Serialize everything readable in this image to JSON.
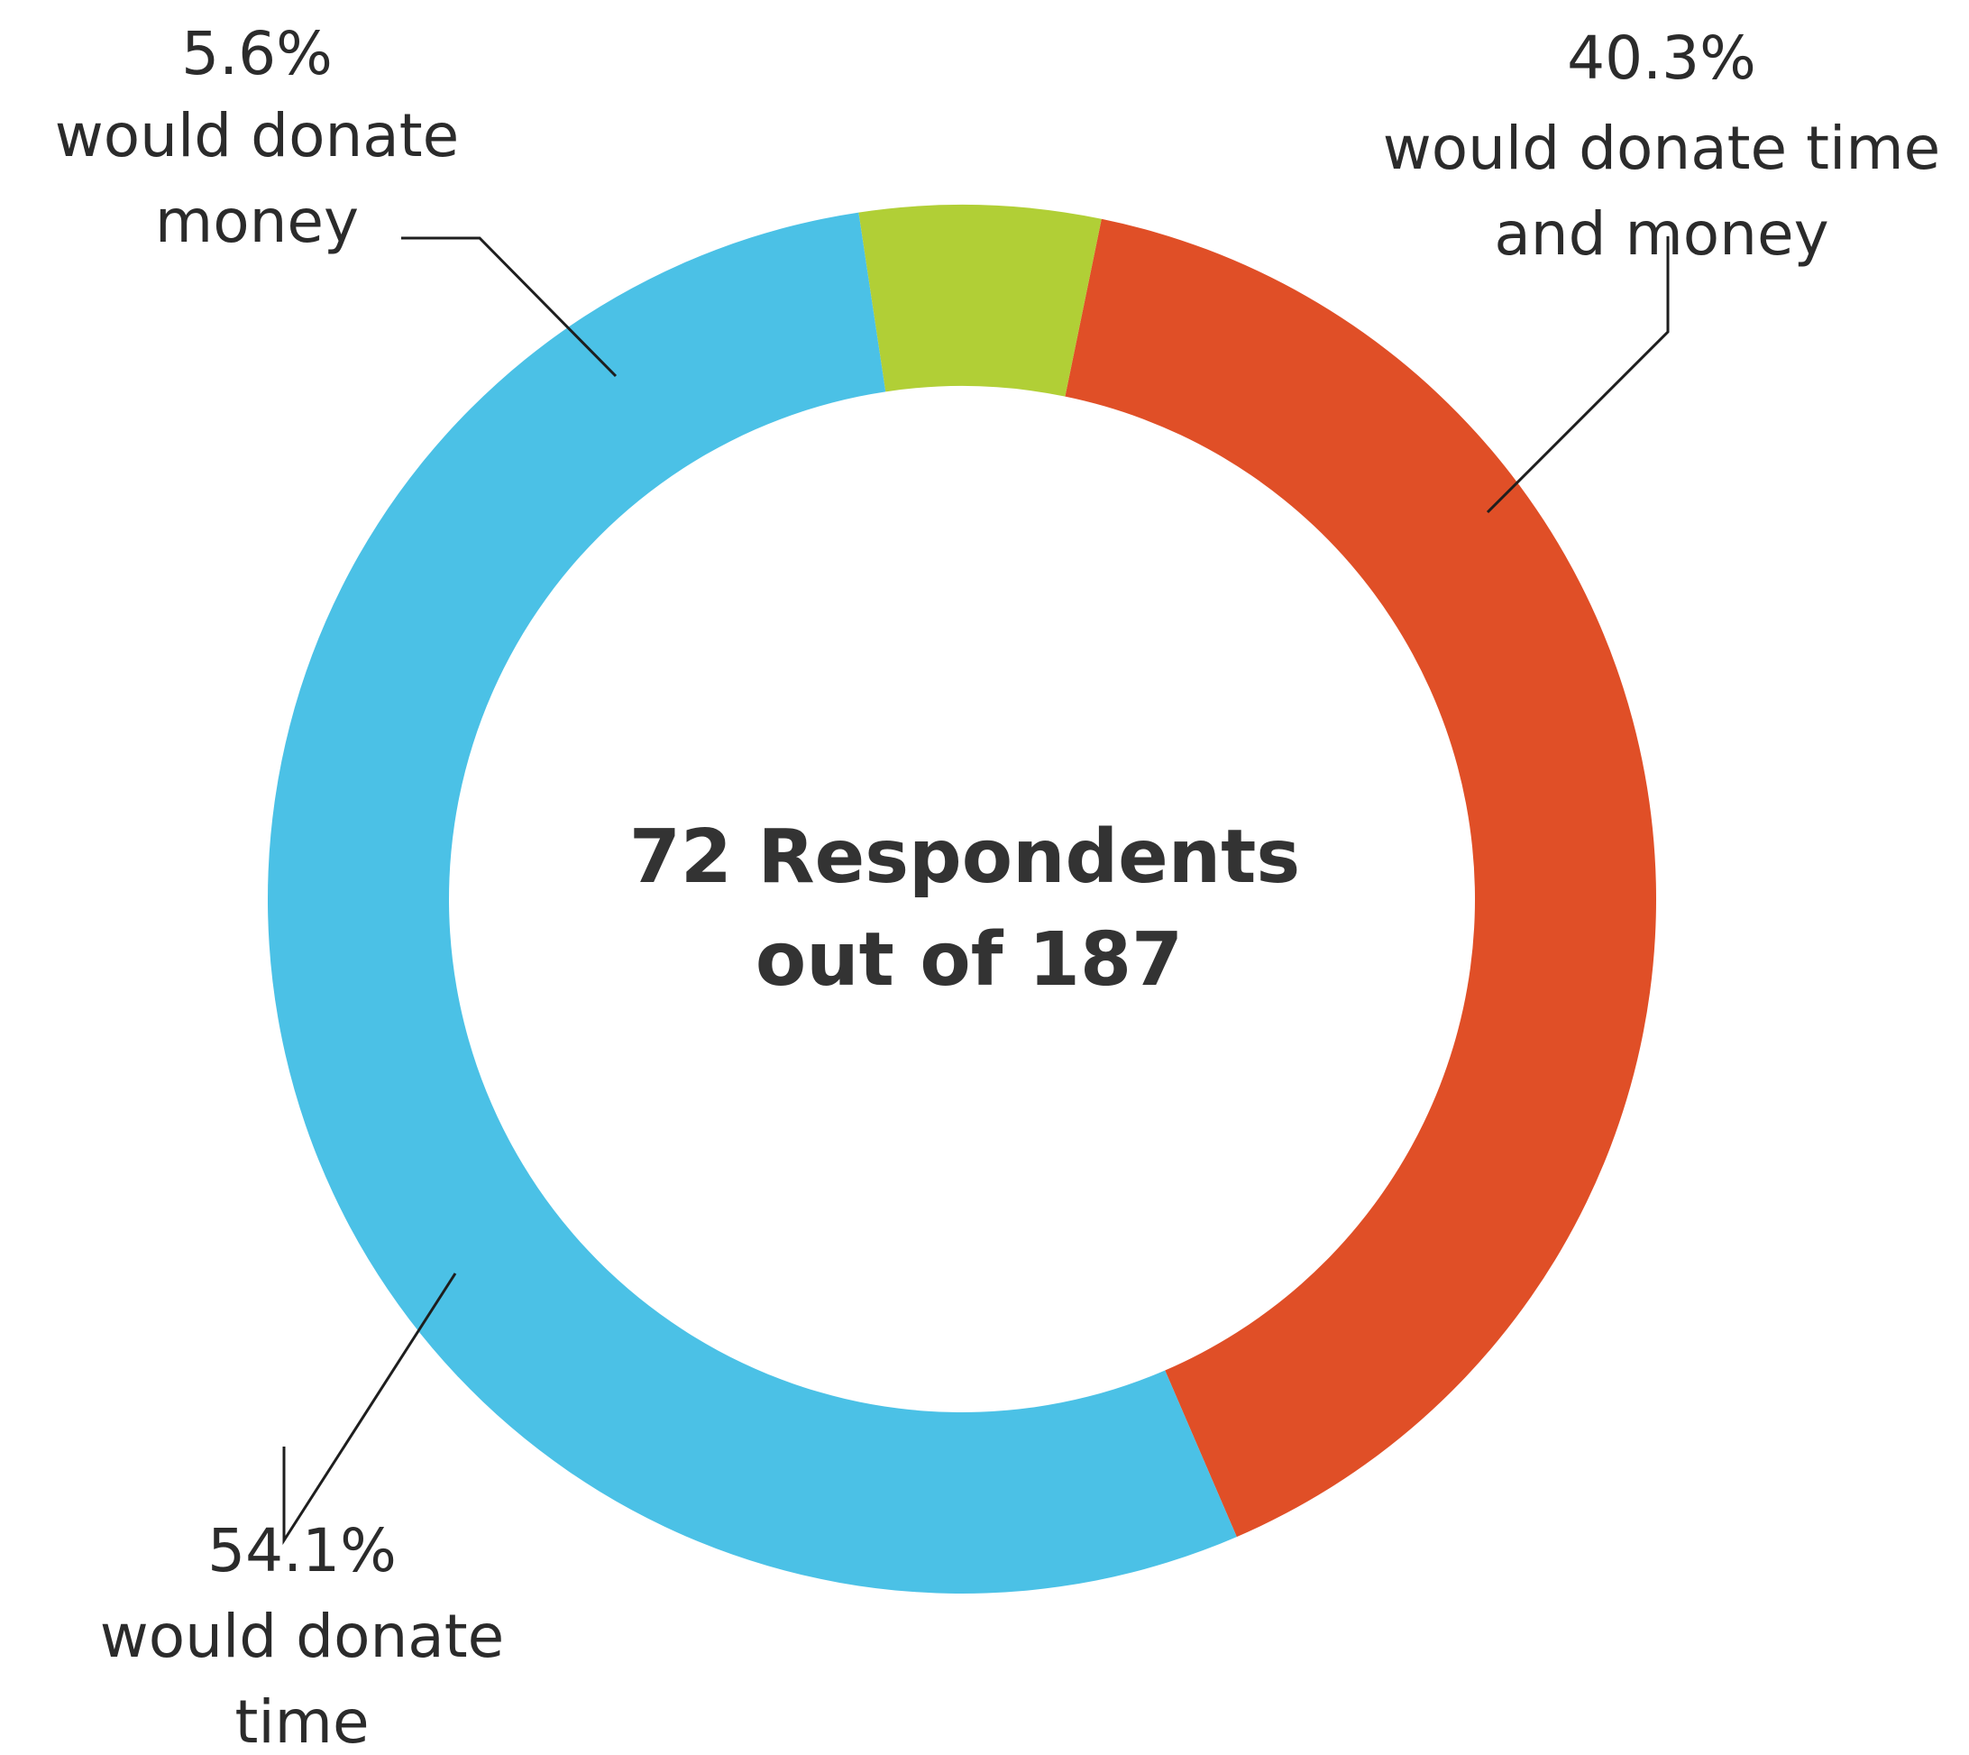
{
  "chart_data": {
    "type": "pie",
    "variant": "donut",
    "center_text": [
      "72 Respondents",
      "out of 187"
    ],
    "slices": [
      {
        "value_percent": 40.3,
        "label_lines": [
          "40.3%",
          "would donate time",
          "and money"
        ],
        "color": "#E04F27"
      },
      {
        "value_percent": 54.1,
        "label_lines": [
          "54.1%",
          "would donate",
          "time"
        ],
        "color": "#4BC1E6"
      },
      {
        "value_percent": 5.6,
        "label_lines": [
          "5.6%",
          "would donate",
          "money"
        ],
        "color": "#B1CF36"
      }
    ],
    "legend": "none"
  }
}
